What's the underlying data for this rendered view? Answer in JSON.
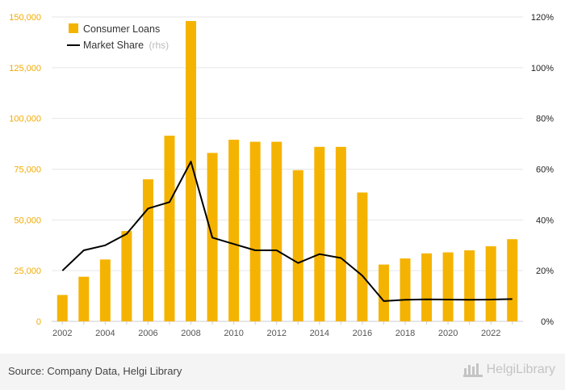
{
  "chart_data": {
    "type": "bar+line",
    "categories": [
      "2002",
      "2003",
      "2004",
      "2005",
      "2006",
      "2007",
      "2008",
      "2009",
      "2010",
      "2011",
      "2012",
      "2013",
      "2014",
      "2015",
      "2016",
      "2017",
      "2018",
      "2019",
      "2020",
      "2021",
      "2022",
      "2023"
    ],
    "x_tick_labels": [
      "2002",
      "2004",
      "2006",
      "2008",
      "2010",
      "2012",
      "2014",
      "2016",
      "2018",
      "2020",
      "2022"
    ],
    "series": [
      {
        "name": "Consumer Loans",
        "type": "bar",
        "axis": "left",
        "color": "#f5b301",
        "values": [
          13000,
          22000,
          30500,
          44500,
          70000,
          91500,
          148000,
          83000,
          89500,
          88500,
          88500,
          74500,
          86000,
          86000,
          63500,
          28000,
          31000,
          33500,
          34000,
          35000,
          37000,
          40500
        ]
      },
      {
        "name": "Market Share",
        "name_suffix": "(rhs)",
        "type": "line",
        "axis": "right",
        "color": "#000000",
        "values": [
          20,
          28,
          30,
          34.5,
          44.5,
          47,
          63,
          33,
          30.5,
          28,
          28,
          23,
          26.5,
          25,
          18,
          8,
          8.5,
          8.7,
          8.6,
          8.5,
          8.6,
          8.8
        ]
      }
    ],
    "y_left": {
      "ylim": [
        0,
        150000
      ],
      "ticks": [
        "0",
        "25,000",
        "50,000",
        "75,000",
        "100,000",
        "125,000",
        "150,000"
      ],
      "tick_values": [
        0,
        25000,
        50000,
        75000,
        100000,
        125000,
        150000
      ],
      "tick_color": "#f2ab00"
    },
    "y_right": {
      "ylim": [
        0,
        120
      ],
      "ticks": [
        "0%",
        "20%",
        "40%",
        "60%",
        "80%",
        "100%",
        "120%"
      ],
      "tick_values": [
        0,
        20,
        40,
        60,
        80,
        100,
        120
      ]
    },
    "legend": {
      "position": "top-left",
      "entries": [
        "Consumer Loans",
        "Market Share"
      ],
      "sub_label": "(rhs)"
    },
    "grid": true
  },
  "footer": {
    "source": "Source: Company Data, Helgi Library",
    "brand": "HelgiLibrary"
  }
}
